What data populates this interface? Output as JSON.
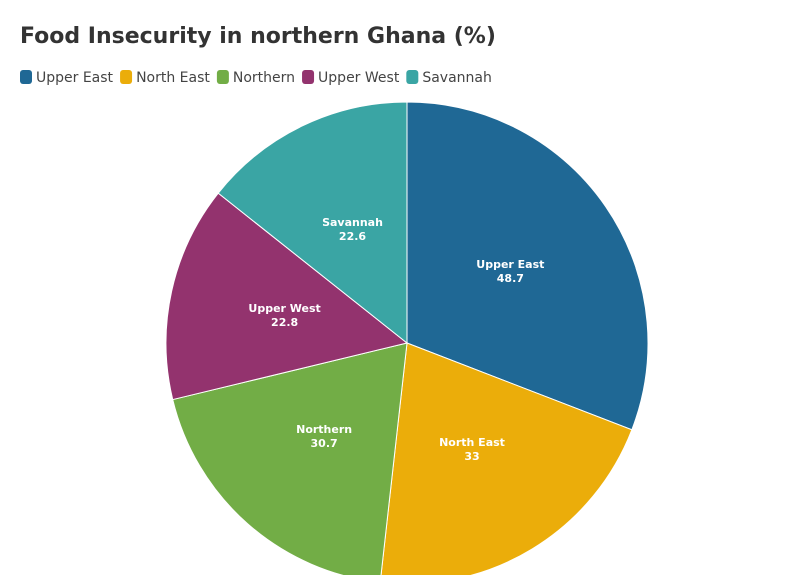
{
  "chart_data": {
    "type": "pie",
    "title": "Food Insecurity in northern Ghana (%)",
    "categories": [
      "Upper East",
      "North East",
      "Northern",
      "Upper West",
      "Savannah"
    ],
    "values": [
      48.7,
      33,
      30.7,
      22.8,
      22.6
    ],
    "colors": [
      "#1f6895",
      "#ebad0a",
      "#72ad46",
      "#93336e",
      "#3aa5a4"
    ]
  }
}
